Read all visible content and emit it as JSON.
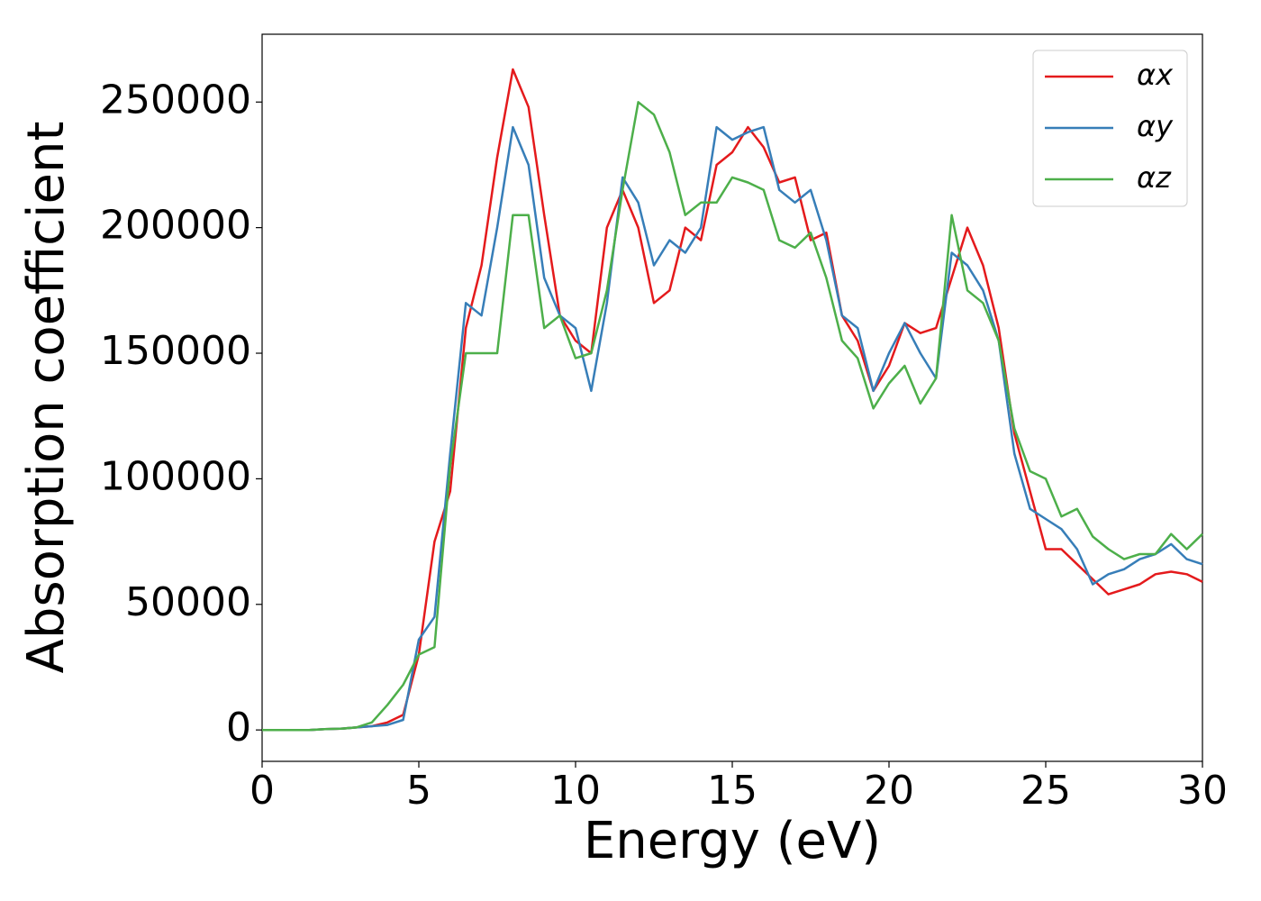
{
  "chart_data": {
    "type": "line",
    "x_label": "Energy (eV)",
    "y_label": "Absorption coefficient",
    "x": [
      0,
      0.5,
      1,
      1.5,
      2,
      2.5,
      3,
      3.5,
      4,
      4.5,
      5,
      5.5,
      6,
      6.5,
      7,
      7.5,
      8,
      8.5,
      9,
      9.5,
      10,
      10.5,
      11,
      11.5,
      12,
      12.5,
      13,
      13.5,
      14,
      14.5,
      15,
      15.5,
      16,
      16.5,
      17,
      17.5,
      18,
      18.5,
      19,
      19.5,
      20,
      20.5,
      21,
      21.5,
      22,
      22.5,
      23,
      23.5,
      24,
      24.5,
      25,
      25.5,
      26,
      26.5,
      27,
      27.5,
      28,
      28.5,
      29,
      29.5,
      30
    ],
    "series": [
      {
        "name": "αx",
        "color": "#e41a1c",
        "values": [
          0,
          0,
          0,
          0,
          300,
          500,
          1000,
          1500,
          3000,
          6000,
          30000,
          75000,
          95000,
          160000,
          185000,
          228000,
          263000,
          248000,
          205000,
          165000,
          155000,
          150000,
          200000,
          215000,
          200000,
          170000,
          175000,
          200000,
          195000,
          225000,
          230000,
          240000,
          232000,
          218000,
          220000,
          195000,
          198000,
          165000,
          155000,
          135000,
          145000,
          162000,
          158000,
          160000,
          180000,
          200000,
          185000,
          160000,
          118000,
          95000,
          72000,
          72000,
          66000,
          60000,
          54000,
          56000,
          58000,
          62000,
          63000,
          62000,
          59000
        ]
      },
      {
        "name": "αy",
        "color": "#377eb8",
        "values": [
          0,
          0,
          0,
          0,
          300,
          500,
          1000,
          1500,
          2000,
          4000,
          36000,
          45000,
          110000,
          170000,
          165000,
          200000,
          240000,
          225000,
          180000,
          165000,
          160000,
          135000,
          170000,
          220000,
          210000,
          185000,
          195000,
          190000,
          200000,
          240000,
          235000,
          238000,
          240000,
          215000,
          210000,
          215000,
          195000,
          165000,
          160000,
          135000,
          150000,
          162000,
          150000,
          140000,
          190000,
          185000,
          175000,
          155000,
          110000,
          88000,
          84000,
          80000,
          72000,
          58000,
          62000,
          64000,
          68000,
          70000,
          74000,
          68000,
          66000
        ]
      },
      {
        "name": "αz",
        "color": "#4daf4a",
        "values": [
          0,
          0,
          0,
          0,
          300,
          500,
          1000,
          3000,
          10000,
          18000,
          30000,
          33000,
          105000,
          150000,
          150000,
          150000,
          205000,
          205000,
          160000,
          165000,
          148000,
          150000,
          175000,
          215000,
          250000,
          245000,
          230000,
          205000,
          210000,
          210000,
          220000,
          218000,
          215000,
          195000,
          192000,
          198000,
          180000,
          155000,
          148000,
          128000,
          138000,
          145000,
          130000,
          140000,
          205000,
          175000,
          170000,
          155000,
          120000,
          103000,
          100000,
          85000,
          88000,
          77000,
          72000,
          68000,
          70000,
          70000,
          78000,
          72000,
          78000
        ]
      }
    ],
    "xlim": [
      0,
      30
    ],
    "xticks": [
      0,
      5,
      10,
      15,
      20,
      25,
      30
    ],
    "ylim": [
      -12500,
      277000
    ],
    "yticks": [
      0,
      50000,
      100000,
      150000,
      200000,
      250000
    ],
    "grid": false,
    "legend": "upper right"
  }
}
